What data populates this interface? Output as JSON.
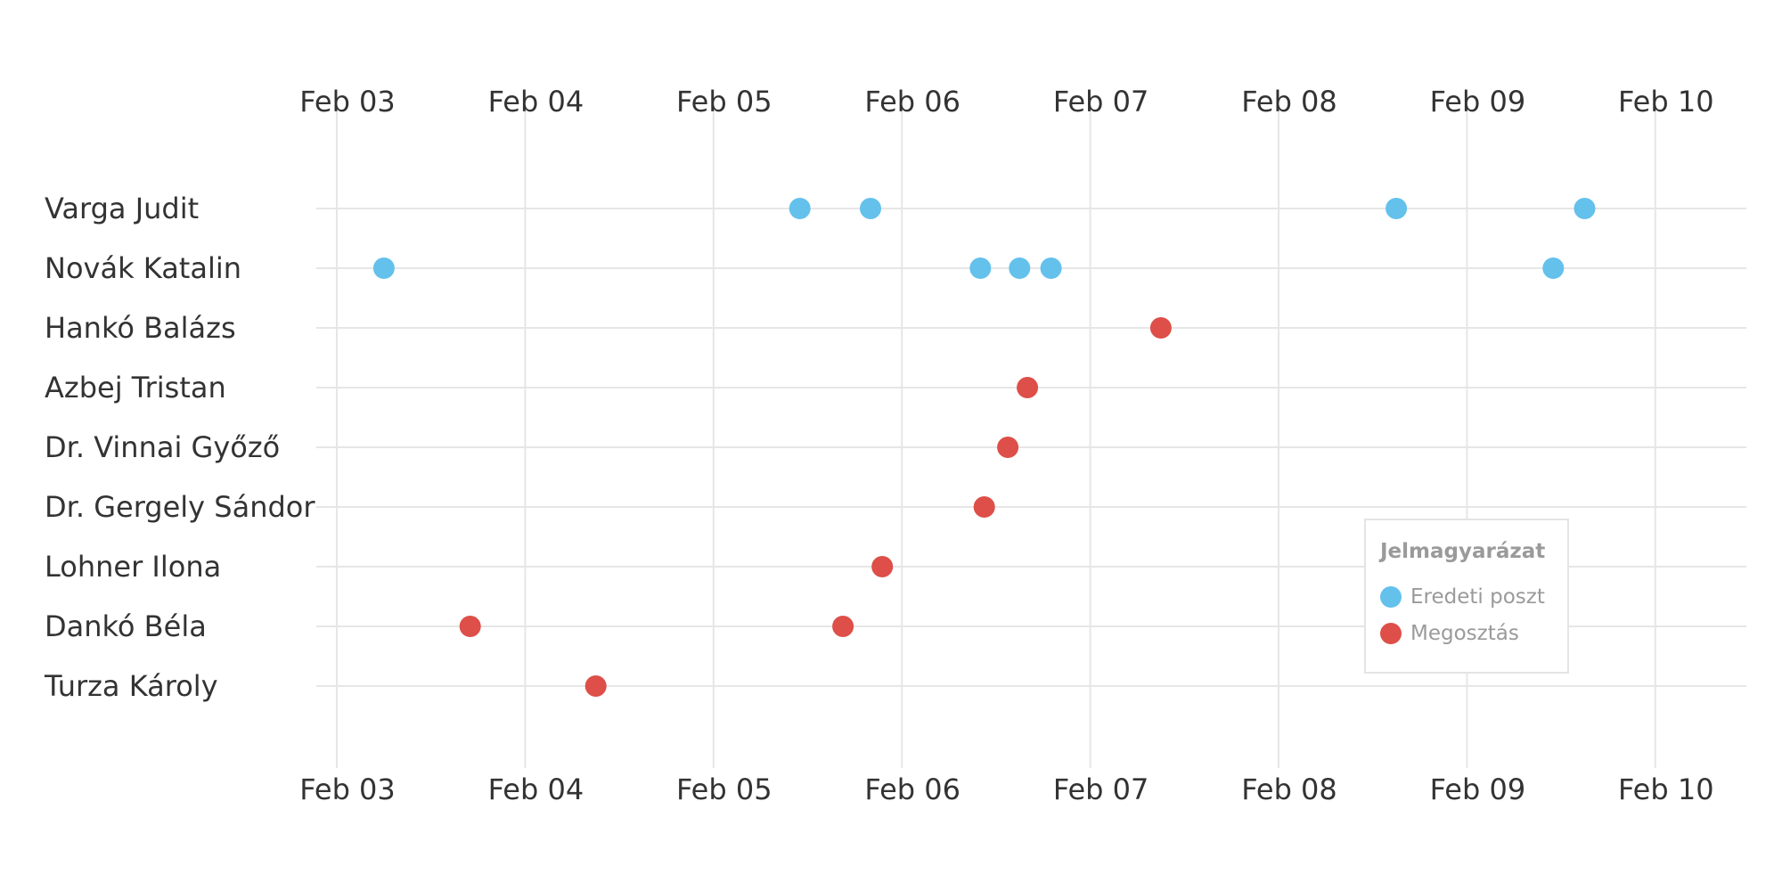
{
  "chart_data": {
    "type": "scatter",
    "title": "",
    "xlabel": "",
    "ylabel": "",
    "x_ticks": [
      "Feb 03",
      "Feb 04",
      "Feb 05",
      "Feb 06",
      "Feb 07",
      "Feb 08",
      "Feb 09",
      "Feb 10"
    ],
    "x_range": [
      "Feb 02 19:00",
      "Feb 10 12:00"
    ],
    "grid": true,
    "rows": [
      "Varga Judit",
      "Novák Katalin",
      "Hankó Balázs",
      "Azbej Tristan",
      "Dr. Vinnai Győző",
      "Dr. Gergely Sándor",
      "Lohner Ilona",
      "Dankó Béla",
      "Turza Károly"
    ],
    "legend": {
      "title": "Jelmagyarázat",
      "placement": "bottom-right",
      "items": [
        {
          "label": "Eredeti poszt",
          "color": "#63c1ec"
        },
        {
          "label": "Megosztás",
          "color": "#dd4f48"
        }
      ]
    },
    "series": [
      {
        "name": "Eredeti poszt",
        "color": "#63c1ec",
        "points": [
          {
            "row": "Varga Judit",
            "x": "Feb 05 11:00"
          },
          {
            "row": "Varga Judit",
            "x": "Feb 05 20:00"
          },
          {
            "row": "Varga Judit",
            "x": "Feb 08 15:00"
          },
          {
            "row": "Varga Judit",
            "x": "Feb 09 15:00"
          },
          {
            "row": "Novák Katalin",
            "x": "Feb 03 06:00"
          },
          {
            "row": "Novák Katalin",
            "x": "Feb 06 10:00"
          },
          {
            "row": "Novák Katalin",
            "x": "Feb 06 15:00"
          },
          {
            "row": "Novák Katalin",
            "x": "Feb 06 19:00"
          },
          {
            "row": "Novák Katalin",
            "x": "Feb 09 11:00"
          }
        ]
      },
      {
        "name": "Megosztás",
        "color": "#dd4f48",
        "points": [
          {
            "row": "Hankó Balázs",
            "x": "Feb 07 09:00"
          },
          {
            "row": "Azbej Tristan",
            "x": "Feb 06 16:00"
          },
          {
            "row": "Dr. Vinnai Győző",
            "x": "Feb 06 13:30"
          },
          {
            "row": "Dr. Gergely Sándor",
            "x": "Feb 06 10:30"
          },
          {
            "row": "Lohner Ilona",
            "x": "Feb 05 21:30"
          },
          {
            "row": "Dankó Béla",
            "x": "Feb 03 17:00"
          },
          {
            "row": "Dankó Béla",
            "x": "Feb 05 16:30"
          },
          {
            "row": "Turza Károly",
            "x": "Feb 04 09:00"
          }
        ]
      }
    ]
  }
}
